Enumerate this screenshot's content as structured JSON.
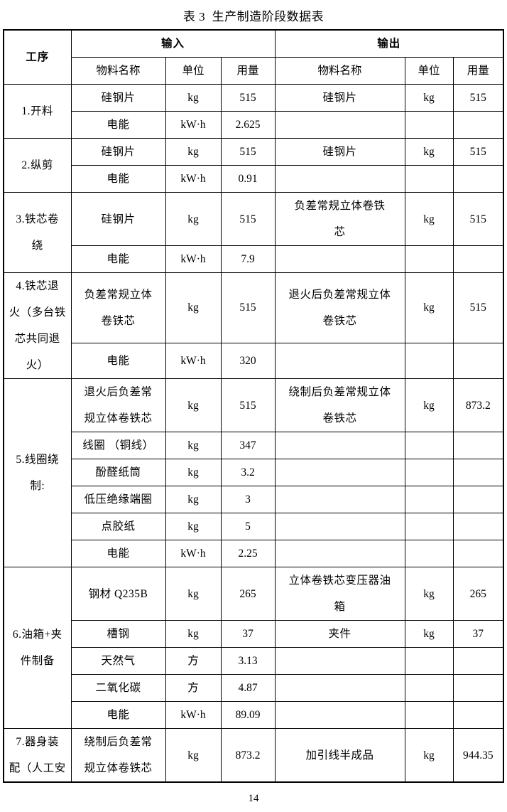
{
  "page": {
    "title": "表 3  生产制造阶段数据表",
    "page_number": "14"
  },
  "table": {
    "header": {
      "process": "工序",
      "input_group": "输入",
      "output_group": "输出",
      "material": "物料名称",
      "unit": "单位",
      "amount": "用量"
    },
    "sections": [
      {
        "process": "1.开料",
        "rows": [
          {
            "in_name": "硅钢片",
            "in_unit": "kg",
            "in_qty": "515",
            "out_name": "硅钢片",
            "out_unit": "kg",
            "out_qty": "515"
          },
          {
            "in_name": "电能",
            "in_unit": "kW·h",
            "in_qty": "2.625",
            "out_name": "",
            "out_unit": "",
            "out_qty": ""
          }
        ]
      },
      {
        "process": "2.纵剪",
        "rows": [
          {
            "in_name": "硅钢片",
            "in_unit": "kg",
            "in_qty": "515",
            "out_name": "硅钢片",
            "out_unit": "kg",
            "out_qty": "515"
          },
          {
            "in_name": "电能",
            "in_unit": "kW·h",
            "in_qty": "0.91",
            "out_name": "",
            "out_unit": "",
            "out_qty": ""
          }
        ]
      },
      {
        "process": "3.铁芯卷\n绕",
        "rows": [
          {
            "in_name": "硅钢片",
            "in_unit": "kg",
            "in_qty": "515",
            "out_name": "负差常规立体卷铁\n芯",
            "out_unit": "kg",
            "out_qty": "515"
          },
          {
            "in_name": "电能",
            "in_unit": "kW·h",
            "in_qty": "7.9",
            "out_name": "",
            "out_unit": "",
            "out_qty": ""
          }
        ]
      },
      {
        "process": "4.铁芯退\n火（多台铁\n芯共同退\n火）",
        "rows": [
          {
            "in_name": "负差常规立体\n卷铁芯",
            "in_unit": "kg",
            "in_qty": "515",
            "out_name": "退火后负差常规立体\n卷铁芯",
            "out_unit": "kg",
            "out_qty": "515"
          },
          {
            "in_name": "电能",
            "in_unit": "kW·h",
            "in_qty": "320",
            "out_name": "",
            "out_unit": "",
            "out_qty": ""
          }
        ]
      },
      {
        "process": "5.线圈绕\n制:",
        "rows": [
          {
            "in_name": "退火后负差常\n规立体卷铁芯",
            "in_unit": "kg",
            "in_qty": "515",
            "out_name": "绕制后负差常规立体\n卷铁芯",
            "out_unit": "kg",
            "out_qty": "873.2"
          },
          {
            "in_name": "线圈 （铜线）",
            "in_unit": "kg",
            "in_qty": "347",
            "out_name": "",
            "out_unit": "",
            "out_qty": ""
          },
          {
            "in_name": "酚醛纸筒",
            "in_unit": "kg",
            "in_qty": "3.2",
            "out_name": "",
            "out_unit": "",
            "out_qty": ""
          },
          {
            "in_name": "低压绝缘端圈",
            "in_unit": "kg",
            "in_qty": "3",
            "out_name": "",
            "out_unit": "",
            "out_qty": ""
          },
          {
            "in_name": "点胶纸",
            "in_unit": "kg",
            "in_qty": "5",
            "out_name": "",
            "out_unit": "",
            "out_qty": ""
          },
          {
            "in_name": "电能",
            "in_unit": "kW·h",
            "in_qty": "2.25",
            "out_name": "",
            "out_unit": "",
            "out_qty": ""
          }
        ]
      },
      {
        "process": "6.油箱+夹\n件制备",
        "rows": [
          {
            "in_name": "钢材 Q235B",
            "in_unit": "kg",
            "in_qty": "265",
            "out_name": "立体卷铁芯变压器油\n箱",
            "out_unit": "kg",
            "out_qty": "265"
          },
          {
            "in_name": "槽钢",
            "in_unit": "kg",
            "in_qty": "37",
            "out_name": "夹件",
            "out_unit": "kg",
            "out_qty": "37"
          },
          {
            "in_name": "天然气",
            "in_unit": "方",
            "in_qty": "3.13",
            "out_name": "",
            "out_unit": "",
            "out_qty": ""
          },
          {
            "in_name": "二氧化碳",
            "in_unit": "方",
            "in_qty": "4.87",
            "out_name": "",
            "out_unit": "",
            "out_qty": ""
          },
          {
            "in_name": "电能",
            "in_unit": "kW·h",
            "in_qty": "89.09",
            "out_name": "",
            "out_unit": "",
            "out_qty": ""
          }
        ]
      },
      {
        "process": "7.器身装\n配（人工安",
        "rows": [
          {
            "in_name": "绕制后负差常\n规立体卷铁芯",
            "in_unit": "kg",
            "in_qty": "873.2",
            "out_name": "加引线半成品",
            "out_unit": "kg",
            "out_qty": "944.35"
          }
        ]
      }
    ]
  }
}
